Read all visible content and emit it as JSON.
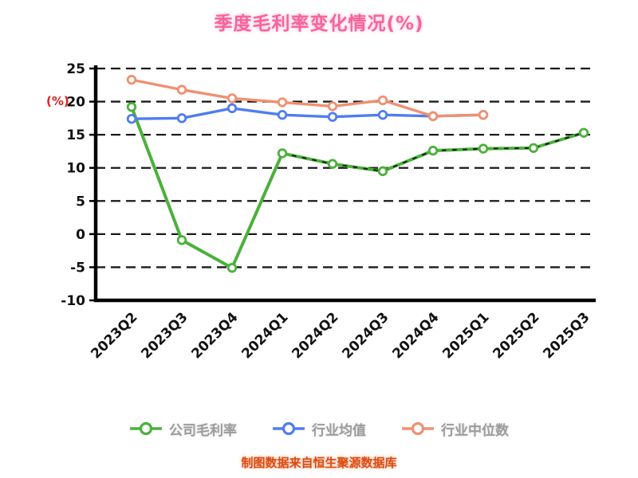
{
  "chart_data": {
    "type": "line",
    "title": "季度毛利率变化情况(%)",
    "ylabel": "(%)",
    "ylim": [
      -10,
      25
    ],
    "yticks": [
      25,
      20,
      15,
      10,
      5,
      0,
      -5,
      -10
    ],
    "grid": "dashed-horizontal",
    "legend_position": "bottom",
    "categories": [
      "2023Q2",
      "2023Q3",
      "2023Q4",
      "2024Q1",
      "2024Q2",
      "2024Q3",
      "2024Q4",
      "2025Q1",
      "2025Q2",
      "2025Q3"
    ],
    "series": [
      {
        "name": "公司毛利率",
        "color": "#4bb13b",
        "values": [
          19.2,
          -0.9,
          -5.1,
          12.2,
          10.6,
          9.5,
          12.6,
          12.9,
          13.0,
          15.3
        ],
        "dash_overlay_from_index": 3
      },
      {
        "name": "行业均值",
        "color": "#4f7df0",
        "values": [
          17.4,
          17.5,
          19.0,
          18.0,
          17.7,
          18.0,
          17.8,
          18.0,
          null,
          null
        ]
      },
      {
        "name": "行业中位数",
        "color": "#f09070",
        "values": [
          23.3,
          21.8,
          20.5,
          19.9,
          19.3,
          20.2,
          17.8,
          18.0,
          null,
          null
        ]
      }
    ]
  },
  "caption": "制图数据来自恒生聚源数据库",
  "colors": {
    "title": "#f8639c",
    "caption": "#dd4a10",
    "legend_text": "#9c9c9c",
    "axis_text": "#111111",
    "ylabel": "#e02020",
    "grid": "#1a1a1a",
    "spine": "#000000",
    "dash_overlay": "#1c1c1c"
  }
}
